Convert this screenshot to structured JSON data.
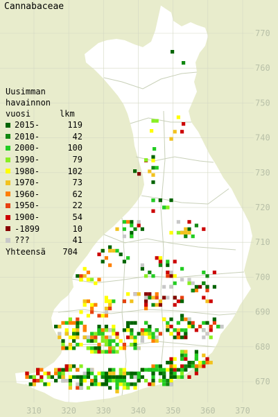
{
  "map": {
    "title": "Cannabaceae",
    "y_ticks": [
      "770",
      "760",
      "750",
      "740",
      "730",
      "720",
      "710",
      "700",
      "690",
      "680",
      "670"
    ],
    "x_ticks": [
      "310",
      "320",
      "330",
      "340",
      "350",
      "360",
      "370"
    ]
  },
  "legend": {
    "header_line1": "Uusimman",
    "header_line2": "havainnon",
    "header_line3_left": "vuosi",
    "header_line3_right": "lkm",
    "items": [
      {
        "label": "2015-",
        "count": "119",
        "color": "#006400"
      },
      {
        "label": "2010-",
        "count": "42",
        "color": "#118811"
      },
      {
        "label": "2000-",
        "count": "100",
        "color": "#22cc22"
      },
      {
        "label": "1990-",
        "count": "79",
        "color": "#88ee22"
      },
      {
        "label": "1980-",
        "count": "102",
        "color": "#ffff00"
      },
      {
        "label": "1970-",
        "count": "73",
        "color": "#f2c21e"
      },
      {
        "label": "1960-",
        "count": "62",
        "color": "#ff7f00"
      },
      {
        "label": "1950-",
        "count": "22",
        "color": "#e84010"
      },
      {
        "label": "1900-",
        "count": "54",
        "color": "#cc0000"
      },
      {
        "label": "-1899",
        "count": "10",
        "color": "#880000"
      },
      {
        "label": "???",
        "count": "41",
        "color": "#c8c8c8"
      }
    ],
    "total_label": "Yhteensä",
    "total_count": "704"
  }
}
